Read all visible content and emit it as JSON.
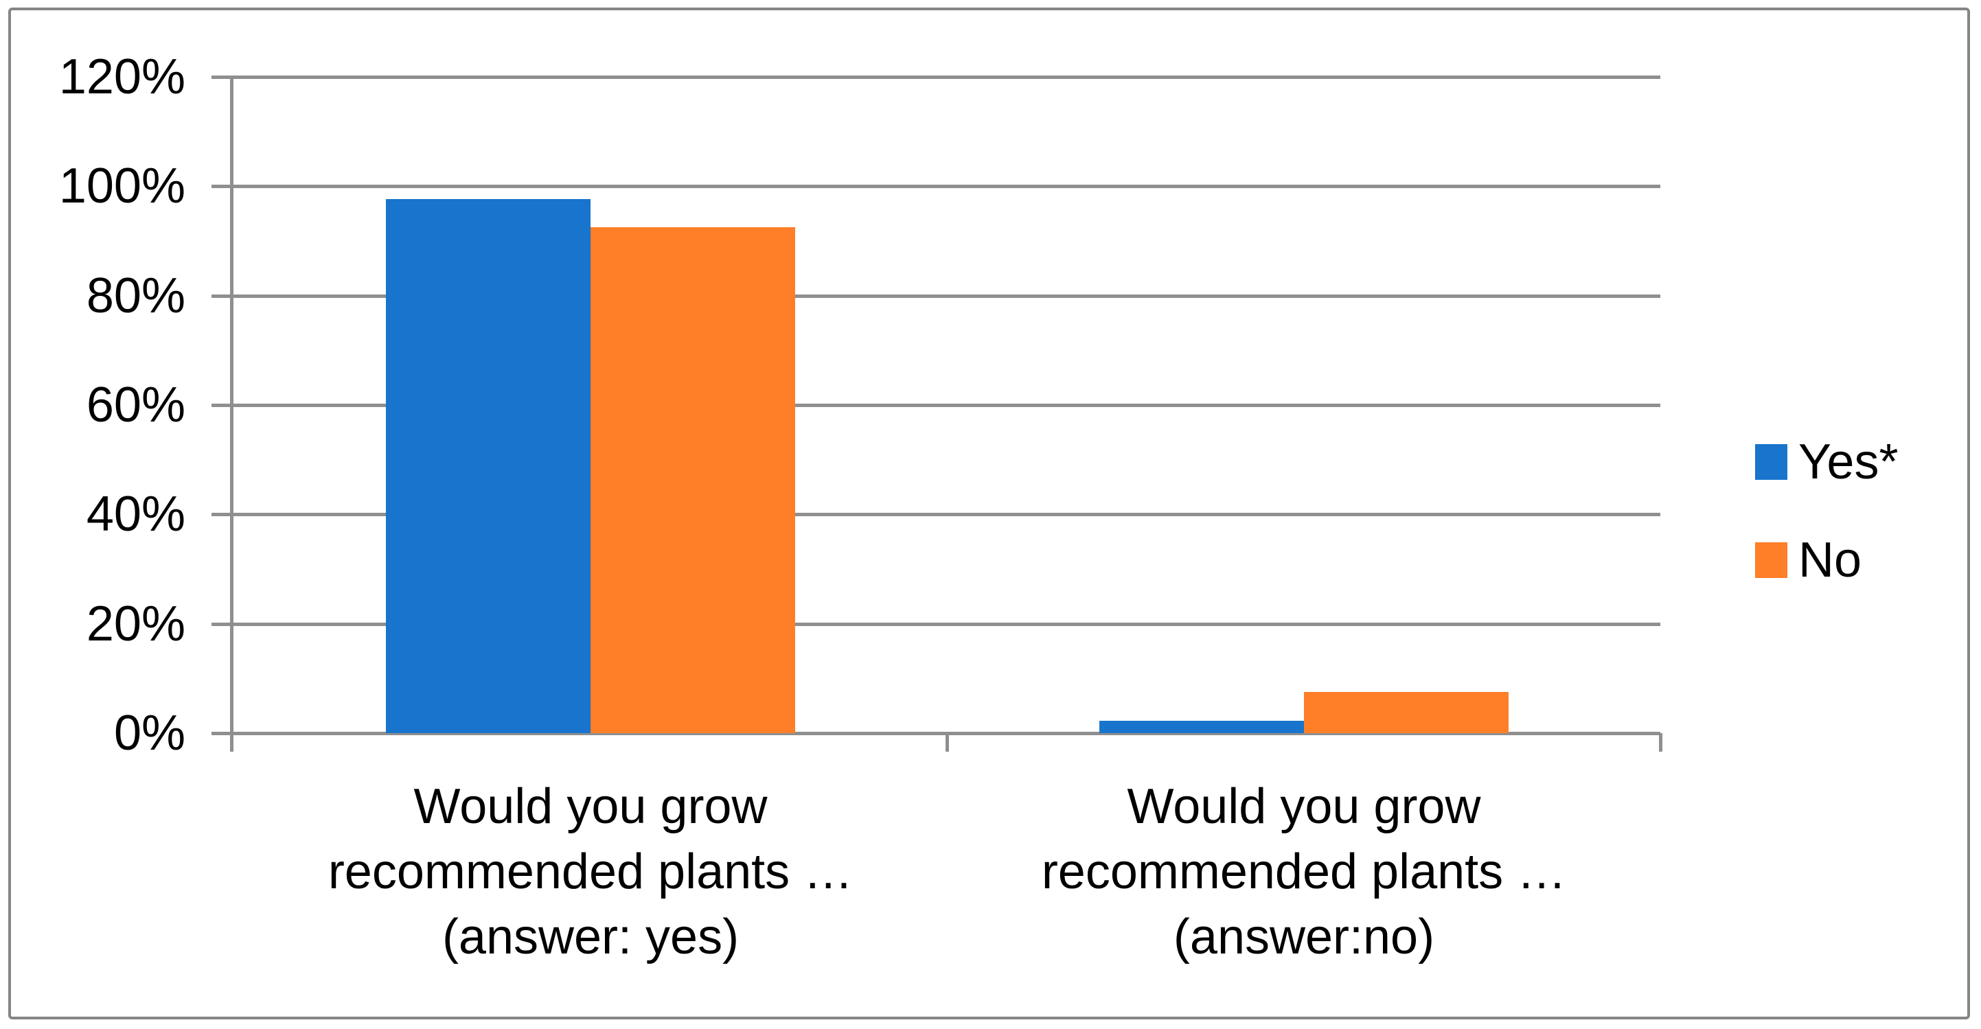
{
  "chart": {
    "background_color": "#ffffff",
    "border_color": "#858585",
    "gridline_color": "#8f8f8f",
    "text_color": "#000000"
  },
  "chart_data": {
    "type": "bar",
    "title": "",
    "categories": [
      [
        "Would you grow",
        "recommended plants …",
        "(answer: yes)"
      ],
      [
        "Would you grow",
        "recommended plants …",
        "(answer:no)"
      ]
    ],
    "series": [
      {
        "name": "Yes*",
        "color": "#1874cd",
        "values": [
          97.6,
          2.3
        ]
      },
      {
        "name": "No",
        "color": "#ff7e28",
        "values": [
          92.5,
          7.5
        ]
      }
    ],
    "ylim": [
      0,
      120
    ],
    "y_step": 20,
    "y_ticks": [
      "0%",
      "20%",
      "40%",
      "60%",
      "80%",
      "100%",
      "120%"
    ],
    "grid": true,
    "legend_position": "right"
  }
}
